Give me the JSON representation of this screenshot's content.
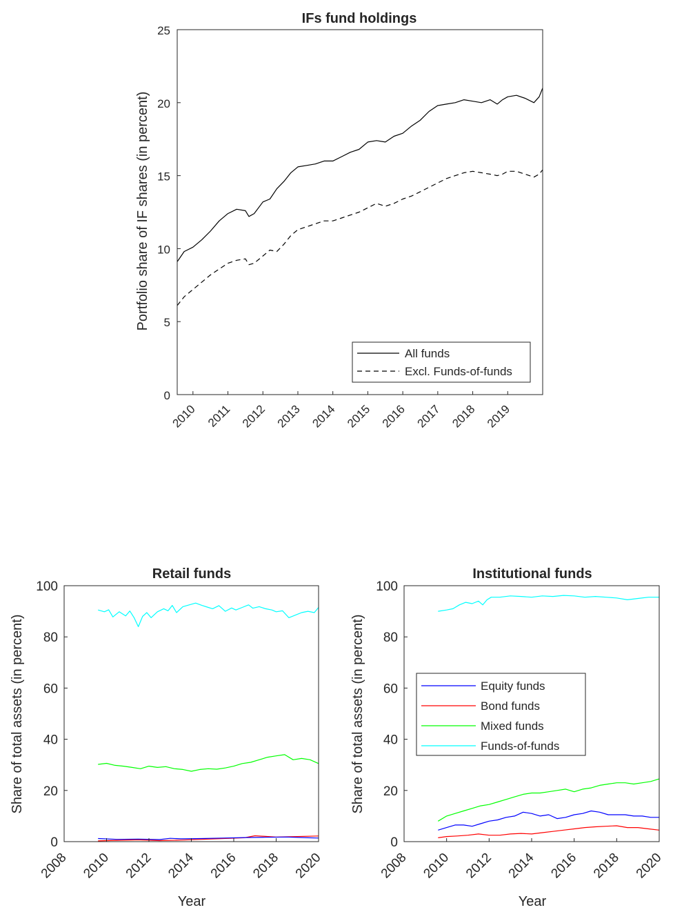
{
  "chart_data": [
    {
      "type": "line",
      "title": "IFs fund holdings",
      "xlabel": "",
      "ylabel": "Portfolio share of IF shares (in percent)",
      "xlim": [
        2009.55,
        2020.0
      ],
      "ylim": [
        0,
        25
      ],
      "xticks": [
        2010,
        2011,
        2012,
        2013,
        2014,
        2015,
        2016,
        2017,
        2018,
        2019
      ],
      "xticklabels": [
        "2010",
        "2011",
        "2012",
        "2013",
        "2014",
        "2015",
        "2016",
        "2017",
        "2018",
        "2019"
      ],
      "yticks": [
        0,
        5,
        10,
        15,
        20,
        25
      ],
      "yticklabels": [
        "0",
        "5",
        "10",
        "15",
        "20",
        "25"
      ],
      "legend_position": "bottom-right",
      "legend_entries": [
        "All funds",
        "Excl. Funds-of-funds"
      ],
      "series": [
        {
          "name": "All funds",
          "color": "#000000",
          "dash": "solid",
          "x": [
            2009.55,
            2009.75,
            2010.0,
            2010.25,
            2010.5,
            2010.75,
            2011.0,
            2011.25,
            2011.5,
            2011.6,
            2011.75,
            2012.0,
            2012.2,
            2012.4,
            2012.6,
            2012.8,
            2013.0,
            2013.25,
            2013.5,
            2013.75,
            2014.0,
            2014.25,
            2014.5,
            2014.75,
            2015.0,
            2015.25,
            2015.5,
            2015.75,
            2016.0,
            2016.25,
            2016.5,
            2016.75,
            2017.0,
            2017.25,
            2017.5,
            2017.75,
            2018.0,
            2018.25,
            2018.5,
            2018.7,
            2018.85,
            2019.0,
            2019.25,
            2019.5,
            2019.75,
            2019.9,
            2020.0
          ],
          "y": [
            9.1,
            9.8,
            10.1,
            10.6,
            11.2,
            11.9,
            12.4,
            12.7,
            12.6,
            12.2,
            12.4,
            13.2,
            13.4,
            14.1,
            14.6,
            15.2,
            15.6,
            15.7,
            15.8,
            16.0,
            16.0,
            16.3,
            16.6,
            16.8,
            17.3,
            17.4,
            17.3,
            17.7,
            17.9,
            18.4,
            18.8,
            19.4,
            19.8,
            19.9,
            20.0,
            20.2,
            20.1,
            20.0,
            20.2,
            19.9,
            20.2,
            20.4,
            20.5,
            20.3,
            20.0,
            20.4,
            21.0
          ]
        },
        {
          "name": "Excl. Funds-of-funds",
          "color": "#000000",
          "dash": "dashed",
          "x": [
            2009.55,
            2009.75,
            2010.0,
            2010.25,
            2010.5,
            2010.75,
            2011.0,
            2011.25,
            2011.5,
            2011.6,
            2011.75,
            2012.0,
            2012.2,
            2012.4,
            2012.6,
            2012.8,
            2013.0,
            2013.25,
            2013.5,
            2013.75,
            2014.0,
            2014.25,
            2014.5,
            2014.75,
            2015.0,
            2015.25,
            2015.5,
            2015.75,
            2016.0,
            2016.25,
            2016.5,
            2016.75,
            2017.0,
            2017.25,
            2017.5,
            2017.75,
            2018.0,
            2018.25,
            2018.5,
            2018.7,
            2018.85,
            2019.0,
            2019.25,
            2019.5,
            2019.75,
            2019.9,
            2020.0
          ],
          "y": [
            6.1,
            6.7,
            7.2,
            7.7,
            8.2,
            8.6,
            9.0,
            9.2,
            9.3,
            8.9,
            9.0,
            9.5,
            9.9,
            9.8,
            10.3,
            10.9,
            11.3,
            11.5,
            11.7,
            11.9,
            11.9,
            12.1,
            12.3,
            12.5,
            12.8,
            13.1,
            12.9,
            13.1,
            13.4,
            13.6,
            13.9,
            14.2,
            14.5,
            14.8,
            15.0,
            15.2,
            15.3,
            15.2,
            15.1,
            15.0,
            15.1,
            15.3,
            15.3,
            15.1,
            14.9,
            15.1,
            15.4
          ]
        }
      ]
    },
    {
      "type": "line",
      "title": "Retail funds",
      "xlabel": "Year",
      "ylabel": "Share of total assets (in percent)",
      "xlim": [
        2008,
        2020
      ],
      "ylim": [
        0,
        100
      ],
      "xticks": [
        2008,
        2010,
        2012,
        2014,
        2016,
        2018,
        2020
      ],
      "xticklabels": [
        "2008",
        "2010",
        "2012",
        "2014",
        "2016",
        "2018",
        "2020"
      ],
      "yticks": [
        0,
        20,
        40,
        60,
        80,
        100
      ],
      "yticklabels": [
        "0",
        "20",
        "40",
        "60",
        "80",
        "100"
      ],
      "series": [
        {
          "name": "Funds-of-funds",
          "color": "#00ffff",
          "x": [
            2009.6,
            2009.9,
            2010.1,
            2010.3,
            2010.6,
            2010.9,
            2011.1,
            2011.3,
            2011.5,
            2011.7,
            2011.9,
            2012.1,
            2012.4,
            2012.7,
            2012.9,
            2013.1,
            2013.3,
            2013.6,
            2013.9,
            2014.2,
            2014.5,
            2014.8,
            2015.0,
            2015.3,
            2015.6,
            2015.9,
            2016.1,
            2016.4,
            2016.7,
            2016.9,
            2017.2,
            2017.5,
            2017.8,
            2018.0,
            2018.3,
            2018.6,
            2018.9,
            2019.2,
            2019.5,
            2019.8,
            2020.0
          ],
          "y": [
            90.5,
            89.8,
            90.6,
            87.8,
            89.8,
            88.2,
            90.1,
            87.5,
            84.0,
            88.0,
            89.5,
            87.5,
            89.8,
            91.0,
            90.2,
            92.3,
            89.5,
            91.8,
            92.5,
            93.2,
            92.3,
            91.5,
            91.0,
            92.2,
            90.0,
            91.3,
            90.5,
            91.5,
            92.5,
            91.2,
            91.8,
            91.0,
            90.5,
            89.8,
            90.2,
            87.5,
            88.5,
            89.5,
            90.0,
            89.5,
            91.5
          ]
        },
        {
          "name": "Mixed funds",
          "color": "#00ff00",
          "x": [
            2009.6,
            2010.0,
            2010.4,
            2010.8,
            2011.2,
            2011.6,
            2012.0,
            2012.4,
            2012.8,
            2013.2,
            2013.6,
            2014.0,
            2014.4,
            2014.8,
            2015.2,
            2015.6,
            2016.0,
            2016.4,
            2016.8,
            2017.2,
            2017.6,
            2018.0,
            2018.4,
            2018.8,
            2019.2,
            2019.6,
            2020.0
          ],
          "y": [
            30.2,
            30.6,
            29.8,
            29.5,
            29.0,
            28.5,
            29.5,
            29.0,
            29.3,
            28.5,
            28.2,
            27.5,
            28.2,
            28.5,
            28.3,
            28.8,
            29.5,
            30.5,
            31.0,
            32.0,
            33.0,
            33.5,
            34.0,
            32.0,
            32.5,
            32.0,
            30.5
          ]
        },
        {
          "name": "Bond funds",
          "color": "#ff0000",
          "x": [
            2009.6,
            2010.5,
            2011.5,
            2012.5,
            2013.5,
            2014.5,
            2015.5,
            2016.5,
            2017.0,
            2018.0,
            2019.0,
            2020.0
          ],
          "y": [
            0.3,
            0.5,
            0.7,
            0.4,
            0.6,
            0.9,
            1.2,
            1.5,
            2.3,
            1.8,
            2.0,
            2.2
          ]
        },
        {
          "name": "Equity funds",
          "color": "#0000ff",
          "x": [
            2009.6,
            2010.5,
            2011.5,
            2012.5,
            2013.0,
            2013.5,
            2014.5,
            2015.5,
            2016.5,
            2017.5,
            2018.5,
            2019.5,
            2020.0
          ],
          "y": [
            1.2,
            0.9,
            1.0,
            0.8,
            1.3,
            1.1,
            1.2,
            1.4,
            1.6,
            1.7,
            1.8,
            1.5,
            1.4
          ]
        }
      ]
    },
    {
      "type": "line",
      "title": "Institutional funds",
      "xlabel": "Year",
      "ylabel": "Share of total assets (in percent)",
      "xlim": [
        2008,
        2020
      ],
      "ylim": [
        0,
        100
      ],
      "xticks": [
        2008,
        2010,
        2012,
        2014,
        2016,
        2018,
        2020
      ],
      "xticklabels": [
        "2008",
        "2010",
        "2012",
        "2014",
        "2016",
        "2018",
        "2020"
      ],
      "yticks": [
        0,
        20,
        40,
        60,
        80,
        100
      ],
      "yticklabels": [
        "0",
        "20",
        "40",
        "60",
        "80",
        "100"
      ],
      "legend_position": "middle-left",
      "legend_entries": [
        "Equity funds",
        "Bond funds",
        "Mixed funds",
        "Funds-of-funds"
      ],
      "series": [
        {
          "name": "Equity funds",
          "color": "#0000ff",
          "x": [
            2009.6,
            2010.0,
            2010.4,
            2010.8,
            2011.2,
            2011.6,
            2012.0,
            2012.4,
            2012.8,
            2013.2,
            2013.6,
            2014.0,
            2014.4,
            2014.8,
            2015.2,
            2015.6,
            2016.0,
            2016.4,
            2016.8,
            2017.2,
            2017.6,
            2018.0,
            2018.4,
            2018.8,
            2019.2,
            2019.6,
            2020.0
          ],
          "y": [
            4.5,
            5.5,
            6.5,
            6.5,
            6.0,
            7.0,
            8.0,
            8.5,
            9.5,
            10.0,
            11.5,
            11.0,
            10.0,
            10.5,
            9.0,
            9.5,
            10.5,
            11.0,
            12.0,
            11.5,
            10.5,
            10.5,
            10.5,
            10.0,
            10.0,
            9.5,
            9.5
          ]
        },
        {
          "name": "Bond funds",
          "color": "#ff0000",
          "x": [
            2009.6,
            2010.0,
            2010.5,
            2011.0,
            2011.5,
            2012.0,
            2012.5,
            2013.0,
            2013.5,
            2014.0,
            2014.5,
            2015.0,
            2015.5,
            2016.0,
            2016.5,
            2017.0,
            2017.5,
            2018.0,
            2018.5,
            2019.0,
            2019.5,
            2020.0
          ],
          "y": [
            1.5,
            2.0,
            2.2,
            2.5,
            3.0,
            2.5,
            2.5,
            3.0,
            3.2,
            3.0,
            3.5,
            4.0,
            4.5,
            5.0,
            5.5,
            5.8,
            6.0,
            6.2,
            5.5,
            5.5,
            5.0,
            4.5
          ]
        },
        {
          "name": "Mixed funds",
          "color": "#00ff00",
          "x": [
            2009.6,
            2010.0,
            2010.4,
            2010.8,
            2011.2,
            2011.6,
            2012.0,
            2012.4,
            2012.8,
            2013.2,
            2013.6,
            2014.0,
            2014.4,
            2014.8,
            2015.2,
            2015.6,
            2016.0,
            2016.4,
            2016.8,
            2017.2,
            2017.6,
            2018.0,
            2018.4,
            2018.8,
            2019.2,
            2019.6,
            2020.0
          ],
          "y": [
            8.0,
            10.0,
            11.0,
            12.0,
            13.0,
            14.0,
            14.5,
            15.5,
            16.5,
            17.5,
            18.5,
            19.0,
            19.0,
            19.5,
            20.0,
            20.5,
            19.5,
            20.5,
            21.0,
            22.0,
            22.5,
            23.0,
            23.0,
            22.5,
            23.0,
            23.5,
            24.5
          ]
        },
        {
          "name": "Funds-of-funds",
          "color": "#00ffff",
          "x": [
            2009.6,
            2010.0,
            2010.3,
            2010.6,
            2010.9,
            2011.2,
            2011.5,
            2011.7,
            2011.9,
            2012.1,
            2012.5,
            2013.0,
            2013.5,
            2014.0,
            2014.5,
            2015.0,
            2015.5,
            2016.0,
            2016.5,
            2017.0,
            2017.5,
            2018.0,
            2018.5,
            2019.0,
            2019.5,
            2020.0
          ],
          "y": [
            90.0,
            90.5,
            91.0,
            92.5,
            93.5,
            93.0,
            94.0,
            92.5,
            94.5,
            95.5,
            95.5,
            96.0,
            95.8,
            95.5,
            96.0,
            95.8,
            96.2,
            96.0,
            95.5,
            95.8,
            95.5,
            95.2,
            94.5,
            95.0,
            95.5,
            95.5
          ]
        }
      ]
    }
  ]
}
